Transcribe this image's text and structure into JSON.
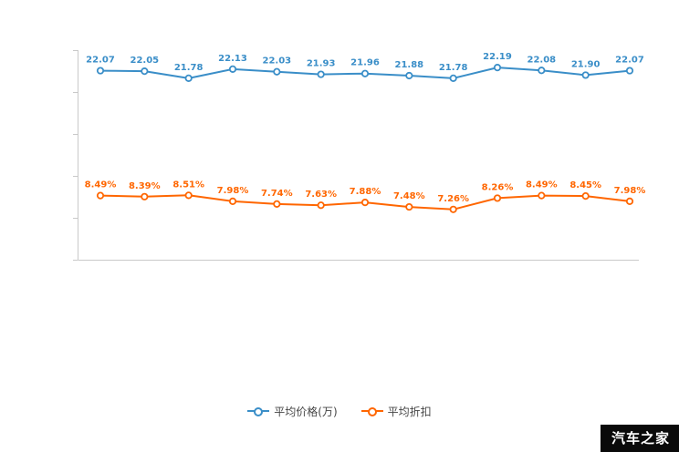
{
  "watermark": {
    "text": "汽车之家"
  },
  "chart_data": {
    "type": "line",
    "title": "",
    "legend_position": "bottom",
    "grid": false,
    "x_tick_labels": [],
    "axis_color": "#c9c9c9",
    "label_font_color_matches_series": true,
    "series": [
      {
        "name": "平均价格(万)",
        "color": "#3a8ec8",
        "label_suffix": "",
        "values": [
          22.07,
          22.05,
          21.78,
          22.13,
          22.03,
          21.93,
          21.96,
          21.88,
          21.78,
          22.19,
          22.08,
          21.9,
          22.07
        ]
      },
      {
        "name": "平均折扣",
        "color": "#ff6600",
        "label_suffix": "%",
        "values": [
          8.49,
          8.39,
          8.51,
          7.98,
          7.74,
          7.63,
          7.88,
          7.48,
          7.26,
          8.26,
          8.49,
          8.45,
          7.98
        ]
      }
    ]
  }
}
